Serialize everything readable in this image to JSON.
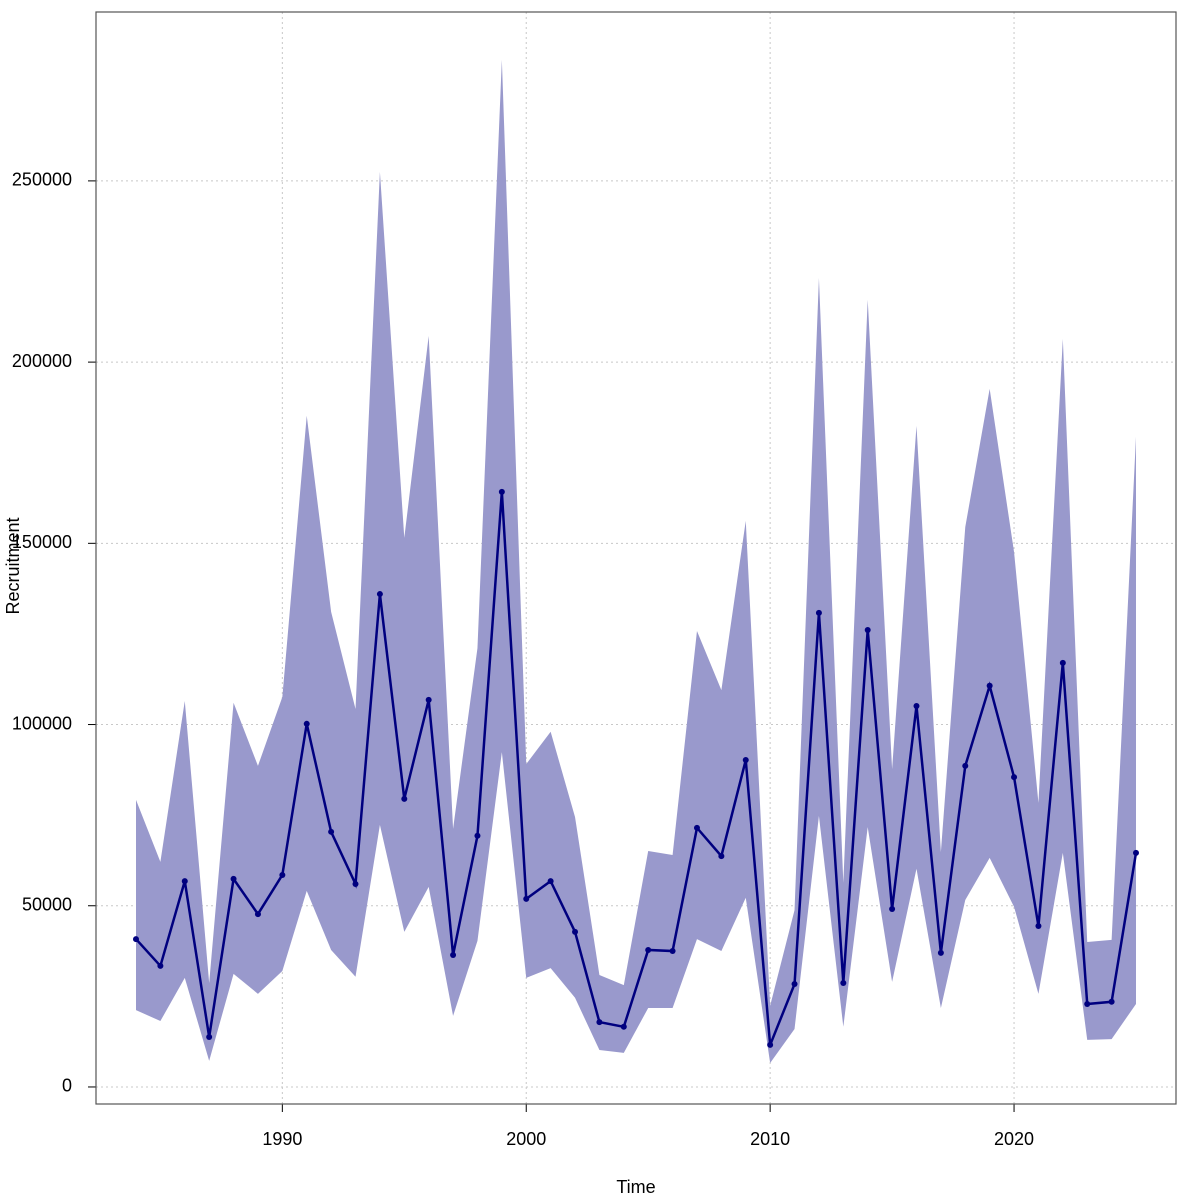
{
  "chart_data": {
    "type": "line",
    "xlabel": "Time",
    "ylabel": "Recruitment",
    "x": [
      1984,
      1985,
      1986,
      1987,
      1988,
      1989,
      1990,
      1991,
      1992,
      1993,
      1994,
      1995,
      1996,
      1997,
      1998,
      1999,
      2000,
      2001,
      2002,
      2003,
      2004,
      2005,
      2006,
      2007,
      2008,
      2009,
      2010,
      2011,
      2012,
      2013,
      2014,
      2015,
      2016,
      2017,
      2018,
      2019,
      2020,
      2021,
      2022,
      2023,
      2024,
      2025
    ],
    "series": [
      {
        "color": "#00007f",
        "values": [
          40800,
          33400,
          56800,
          13800,
          57400,
          47700,
          58500,
          100200,
          70400,
          56000,
          136000,
          79500,
          106800,
          36400,
          69300,
          164200,
          51900,
          56800,
          42800,
          17900,
          16600,
          37800,
          37500,
          71500,
          63700,
          90200,
          11600,
          28400,
          130800,
          28700,
          126100,
          49100,
          105100,
          37000,
          88600,
          110700,
          85500,
          44400,
          117000,
          22900,
          23500,
          64600
        ]
      }
    ],
    "band": {
      "color": "#9999cc",
      "upper": [
        79200,
        62100,
        106500,
        28700,
        106000,
        88600,
        107600,
        185200,
        131100,
        104300,
        252500,
        151500,
        207200,
        71200,
        121100,
        283400,
        89100,
        98000,
        74500,
        30900,
        28100,
        65100,
        64000,
        125800,
        109500,
        156200,
        22400,
        48800,
        223200,
        56300,
        217200,
        87700,
        182400,
        64800,
        154500,
        192600,
        147600,
        78400,
        206400,
        40000,
        40600,
        179400
      ],
      "lower": [
        21200,
        18200,
        30100,
        7200,
        31200,
        25700,
        32000,
        54100,
        37800,
        30400,
        72300,
        42800,
        55200,
        19600,
        40300,
        92400,
        30100,
        32800,
        24600,
        10200,
        9400,
        21800,
        21800,
        40800,
        37500,
        52200,
        6600,
        16000,
        74800,
        16600,
        71700,
        29000,
        60200,
        21800,
        51600,
        63200,
        49700,
        25700,
        64600,
        13000,
        13200,
        22900
      ]
    },
    "xlim": [
      1982.36,
      2026.64
    ],
    "ylim": [
      -4700,
      296600
    ],
    "xticks": [
      1990,
      2000,
      2010,
      2020
    ],
    "yticks": [
      0,
      50000,
      100000,
      150000,
      200000,
      250000
    ],
    "grid": true
  }
}
